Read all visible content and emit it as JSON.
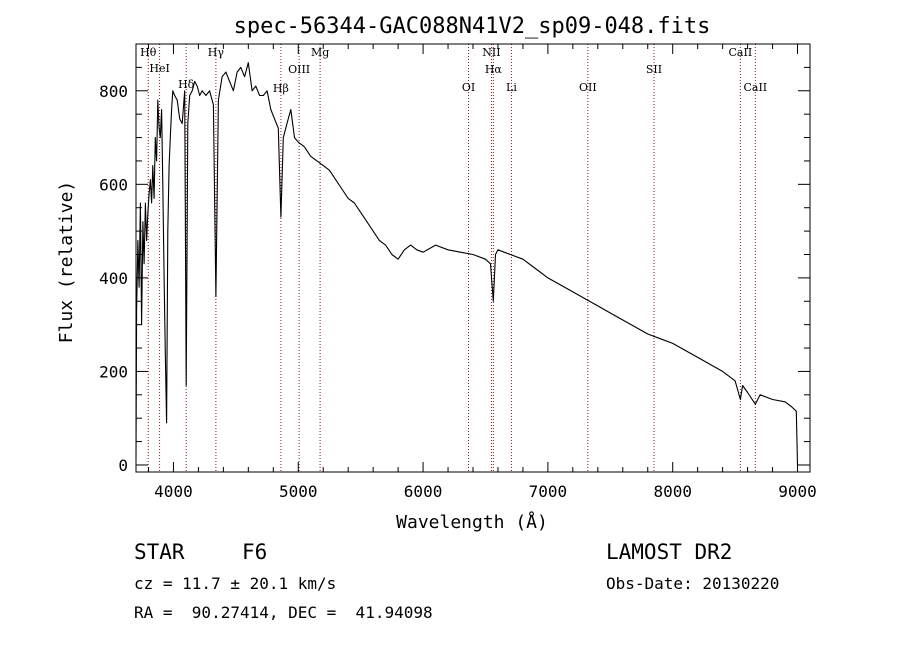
{
  "chart_data": {
    "type": "line",
    "title": "spec-56344-GAC088N41V2_sp09-048.fits",
    "xlabel": "Wavelength (Å)",
    "ylabel": "Flux (relative)",
    "xlim": [
      3700,
      9100
    ],
    "ylim": [
      -15,
      900
    ],
    "x_ticks": [
      4000,
      5000,
      6000,
      7000,
      8000,
      9000
    ],
    "y_ticks": [
      0,
      200,
      400,
      600,
      800
    ],
    "grid": false,
    "line_color": "#000000",
    "marker_color": "#8b1a1a",
    "series": [
      {
        "x": [
          3700,
          3705,
          3715,
          3725,
          3735,
          3745,
          3755,
          3765,
          3775,
          3785,
          3795,
          3805,
          3815,
          3825,
          3835,
          3845,
          3855,
          3865,
          3875,
          3885,
          3895,
          3905,
          3915,
          3925,
          3935,
          3945,
          3955,
          3965,
          3975,
          3985,
          3995,
          4010,
          4030,
          4050,
          4070,
          4090,
          4102,
          4115,
          4130,
          4150,
          4170,
          4190,
          4210,
          4230,
          4260,
          4290,
          4320,
          4340,
          4360,
          4390,
          4420,
          4450,
          4480,
          4510,
          4540,
          4570,
          4600,
          4630,
          4660,
          4690,
          4720,
          4750,
          4780,
          4810,
          4840,
          4861,
          4880,
          4910,
          4940,
          4970,
          5000,
          5050,
          5100,
          5150,
          5200,
          5250,
          5300,
          5350,
          5400,
          5450,
          5500,
          5550,
          5600,
          5650,
          5700,
          5750,
          5800,
          5850,
          5900,
          5950,
          6000,
          6100,
          6200,
          6300,
          6400,
          6500,
          6540,
          6563,
          6580,
          6600,
          6650,
          6700,
          6800,
          6900,
          7000,
          7100,
          7200,
          7300,
          7400,
          7500,
          7600,
          7700,
          7800,
          7900,
          8000,
          8100,
          8200,
          8300,
          8400,
          8500,
          8542,
          8560,
          8600,
          8662,
          8700,
          8800,
          8900,
          8950,
          8990,
          9000
        ],
        "y": [
          15,
          330,
          480,
          380,
          560,
          300,
          520,
          430,
          560,
          480,
          540,
          580,
          610,
          560,
          640,
          570,
          700,
          650,
          780,
          720,
          700,
          760,
          600,
          400,
          240,
          90,
          500,
          640,
          700,
          760,
          800,
          790,
          780,
          740,
          730,
          800,
          170,
          730,
          790,
          800,
          820,
          810,
          790,
          800,
          790,
          800,
          770,
          360,
          780,
          830,
          840,
          820,
          800,
          840,
          850,
          830,
          860,
          800,
          810,
          790,
          790,
          800,
          760,
          740,
          720,
          530,
          700,
          730,
          760,
          700,
          690,
          680,
          660,
          650,
          640,
          630,
          610,
          590,
          570,
          560,
          540,
          520,
          500,
          480,
          470,
          450,
          440,
          460,
          470,
          460,
          455,
          470,
          460,
          455,
          450,
          440,
          430,
          350,
          450,
          460,
          455,
          450,
          440,
          420,
          400,
          385,
          370,
          355,
          340,
          325,
          310,
          295,
          280,
          270,
          260,
          245,
          230,
          215,
          200,
          180,
          140,
          170,
          155,
          130,
          150,
          140,
          135,
          125,
          115,
          0
        ]
      }
    ],
    "lines": [
      {
        "label": "Hθ",
        "x": 3798
      },
      {
        "label": "HeI",
        "x": 3889
      },
      {
        "label": "Hδ",
        "x": 4102
      },
      {
        "label": "Hγ",
        "x": 4340
      },
      {
        "label": "Hβ",
        "x": 4861
      },
      {
        "label": "OIII",
        "x": 5007
      },
      {
        "label": "Mg",
        "x": 5175
      },
      {
        "label": "OI",
        "x": 6364
      },
      {
        "label": "NII",
        "x": 6548
      },
      {
        "label": "Hα",
        "x": 6563
      },
      {
        "label": "Li",
        "x": 6708
      },
      {
        "label": "OII",
        "x": 7320
      },
      {
        "label": "SII",
        "x": 7850
      },
      {
        "label": "CaII",
        "x": 8542
      },
      {
        "label": "CaII",
        "x": 8662
      }
    ]
  },
  "info": {
    "class_label": "STAR",
    "subclass": "F6",
    "survey": "LAMOST DR2",
    "cz": "cz = 11.7 ± 20.1 km/s",
    "obs_date": "Obs-Date: 20130220",
    "coords": "RA =  90.27414, DEC =  41.94098"
  }
}
